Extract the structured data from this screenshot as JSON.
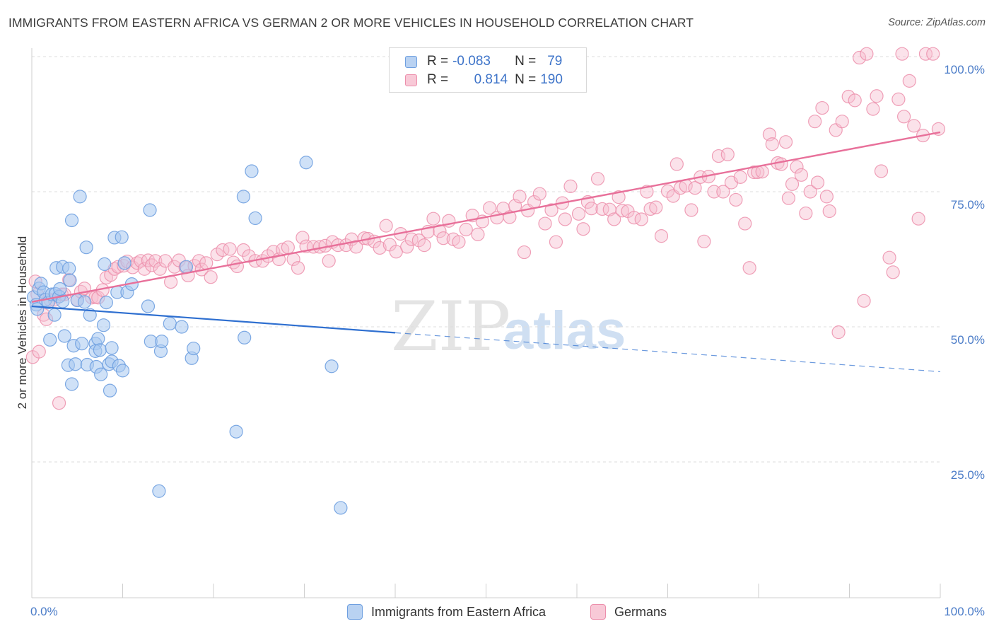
{
  "title": "IMMIGRANTS FROM EASTERN AFRICA VS GERMAN 2 OR MORE VEHICLES IN HOUSEHOLD CORRELATION CHART",
  "source": "Source: ZipAtlas.com",
  "watermark": {
    "zip": "ZIP",
    "atlas": "atlas"
  },
  "legend": {
    "rows": [
      {
        "r_label": "R =",
        "r_value": "-0.083",
        "n_label": "N =",
        "n_value": "79"
      },
      {
        "r_label": "R =",
        "r_value": "0.814",
        "n_label": "N =",
        "n_value": "190"
      }
    ]
  },
  "bottom_legend": [
    "Immigrants from Eastern Africa",
    "Germans"
  ],
  "colors": {
    "blue": "#6fa0e0",
    "blue_fill": "#a8c8f0",
    "blue_line": "#2e6fd0",
    "pink": "#ec8fac",
    "pink_fill": "#f6bfd0",
    "pink_line": "#e8709a",
    "tick_text": "#4b7cc8"
  },
  "chart_data": {
    "type": "scatter",
    "title": "IMMIGRANTS FROM EASTERN AFRICA VS GERMAN 2 OR MORE VEHICLES IN HOUSEHOLD CORRELATION CHART",
    "xlabel": "",
    "ylabel": "2 or more Vehicles in Household",
    "xlim": [
      0,
      100
    ],
    "ylim": [
      0,
      105
    ],
    "x_tick_labels": [
      "0.0%",
      "100.0%"
    ],
    "y_ticks": [
      25,
      50,
      75,
      100
    ],
    "y_tick_labels": [
      "25.0%",
      "50.0%",
      "75.0%",
      "100.0%"
    ],
    "grid": true,
    "legend_position": "top-center",
    "series": [
      {
        "name": "Immigrants from Eastern Africa",
        "r": -0.083,
        "n": 79,
        "trend": {
          "x": [
            0,
            40,
            100
          ],
          "y": [
            53.8,
            48.9,
            41.7
          ],
          "solid_until": 40
        },
        "points": [
          [
            0.2,
            55.5
          ],
          [
            0.5,
            54.1
          ],
          [
            0.6,
            53.3
          ],
          [
            0.8,
            57.1
          ],
          [
            1.0,
            58.0
          ],
          [
            1.3,
            56.4
          ],
          [
            1.5,
            55.0
          ],
          [
            1.8,
            54.5
          ],
          [
            2.0,
            47.6
          ],
          [
            2.2,
            56.0
          ],
          [
            2.5,
            52.2
          ],
          [
            2.6,
            56.1
          ],
          [
            2.7,
            60.9
          ],
          [
            3.0,
            55.6
          ],
          [
            3.1,
            57.0
          ],
          [
            3.4,
            54.7
          ],
          [
            3.4,
            61.1
          ],
          [
            3.6,
            48.3
          ],
          [
            4.0,
            42.9
          ],
          [
            4.1,
            60.8
          ],
          [
            4.2,
            58.6
          ],
          [
            4.4,
            39.4
          ],
          [
            4.4,
            69.7
          ],
          [
            4.6,
            46.5
          ],
          [
            4.8,
            43.1
          ],
          [
            5.0,
            54.9
          ],
          [
            5.3,
            74.1
          ],
          [
            5.5,
            46.9
          ],
          [
            5.8,
            54.6
          ],
          [
            6.0,
            64.7
          ],
          [
            6.1,
            43.0
          ],
          [
            6.4,
            52.2
          ],
          [
            7.0,
            46.9
          ],
          [
            7.0,
            45.5
          ],
          [
            7.1,
            42.6
          ],
          [
            7.3,
            47.8
          ],
          [
            7.5,
            45.7
          ],
          [
            7.6,
            41.2
          ],
          [
            7.9,
            50.3
          ],
          [
            8.0,
            61.6
          ],
          [
            8.2,
            54.5
          ],
          [
            8.5,
            43.1
          ],
          [
            8.6,
            38.2
          ],
          [
            8.8,
            43.6
          ],
          [
            8.8,
            46.1
          ],
          [
            9.1,
            66.5
          ],
          [
            9.4,
            56.4
          ],
          [
            9.6,
            42.8
          ],
          [
            9.9,
            66.6
          ],
          [
            10.0,
            41.9
          ],
          [
            10.2,
            61.8
          ],
          [
            10.5,
            56.4
          ],
          [
            11.0,
            57.9
          ],
          [
            12.8,
            53.8
          ],
          [
            13.0,
            71.6
          ],
          [
            13.1,
            47.3
          ],
          [
            14.0,
            19.6
          ],
          [
            14.2,
            45.5
          ],
          [
            14.3,
            47.3
          ],
          [
            15.2,
            50.6
          ],
          [
            16.5,
            50.0
          ],
          [
            17.0,
            61.1
          ],
          [
            17.6,
            44.2
          ],
          [
            17.8,
            46.0
          ],
          [
            22.5,
            30.6
          ],
          [
            23.3,
            74.1
          ],
          [
            23.4,
            48.0
          ],
          [
            24.2,
            78.8
          ],
          [
            24.6,
            70.1
          ],
          [
            30.2,
            80.4
          ],
          [
            33.0,
            42.7
          ],
          [
            34.0,
            16.5
          ]
        ]
      },
      {
        "name": "Germans",
        "r": 0.814,
        "n": 190,
        "trend": {
          "x": [
            0,
            100
          ],
          "y": [
            54.6,
            86.0
          ]
        },
        "points": [
          [
            0.1,
            44.4
          ],
          [
            0.4,
            58.4
          ],
          [
            0.6,
            56.0
          ],
          [
            0.8,
            45.4
          ],
          [
            1.3,
            52.2
          ],
          [
            1.6,
            51.4
          ],
          [
            2.0,
            55.0
          ],
          [
            2.5,
            55.0
          ],
          [
            3.0,
            35.9
          ],
          [
            3.3,
            56.0
          ],
          [
            3.6,
            56.0
          ],
          [
            4.1,
            58.7
          ],
          [
            5.0,
            55.0
          ],
          [
            5.4,
            56.5
          ],
          [
            5.8,
            57.1
          ],
          [
            6.6,
            55.4
          ],
          [
            7.0,
            55.5
          ],
          [
            7.3,
            55.4
          ],
          [
            7.8,
            56.8
          ],
          [
            8.2,
            59.1
          ],
          [
            8.7,
            59.6
          ],
          [
            9.1,
            60.7
          ],
          [
            9.5,
            61.1
          ],
          [
            10.1,
            61.3
          ],
          [
            10.5,
            62.1
          ],
          [
            11.1,
            61.0
          ],
          [
            11.6,
            61.8
          ],
          [
            12.0,
            62.2
          ],
          [
            12.4,
            60.7
          ],
          [
            12.8,
            62.3
          ],
          [
            13.2,
            61.4
          ],
          [
            13.6,
            62.2
          ],
          [
            14.1,
            60.7
          ],
          [
            14.7,
            62.2
          ],
          [
            15.3,
            58.3
          ],
          [
            15.7,
            61.1
          ],
          [
            16.2,
            62.3
          ],
          [
            16.9,
            61.0
          ],
          [
            17.2,
            59.5
          ],
          [
            17.9,
            61.3
          ],
          [
            18.4,
            62.2
          ],
          [
            18.7,
            60.6
          ],
          [
            19.2,
            61.8
          ],
          [
            19.7,
            59.2
          ],
          [
            20.4,
            63.4
          ],
          [
            21.0,
            64.2
          ],
          [
            21.8,
            64.4
          ],
          [
            22.2,
            61.9
          ],
          [
            22.6,
            61.2
          ],
          [
            23.3,
            64.2
          ],
          [
            23.9,
            63.1
          ],
          [
            24.6,
            62.2
          ],
          [
            25.4,
            62.2
          ],
          [
            26.0,
            63.1
          ],
          [
            26.6,
            63.9
          ],
          [
            27.2,
            62.5
          ],
          [
            27.6,
            64.3
          ],
          [
            28.2,
            64.7
          ],
          [
            28.8,
            62.5
          ],
          [
            29.3,
            60.9
          ],
          [
            29.8,
            66.5
          ],
          [
            30.2,
            64.9
          ],
          [
            31.0,
            64.8
          ],
          [
            31.7,
            64.8
          ],
          [
            32.3,
            65.0
          ],
          [
            32.7,
            62.2
          ],
          [
            33.1,
            65.7
          ],
          [
            33.7,
            65.1
          ],
          [
            34.6,
            65.1
          ],
          [
            35.2,
            66.2
          ],
          [
            35.7,
            64.8
          ],
          [
            36.6,
            66.4
          ],
          [
            37.0,
            66.3
          ],
          [
            37.7,
            65.8
          ],
          [
            38.3,
            64.6
          ],
          [
            39.0,
            68.7
          ],
          [
            39.4,
            65.2
          ],
          [
            40.1,
            63.9
          ],
          [
            40.6,
            67.2
          ],
          [
            41.3,
            64.8
          ],
          [
            41.8,
            66.2
          ],
          [
            42.6,
            66.0
          ],
          [
            43.2,
            65.1
          ],
          [
            43.6,
            67.6
          ],
          [
            44.2,
            70.0
          ],
          [
            44.9,
            67.7
          ],
          [
            45.3,
            66.4
          ],
          [
            45.9,
            69.6
          ],
          [
            46.4,
            66.2
          ],
          [
            47.0,
            65.7
          ],
          [
            47.8,
            68.0
          ],
          [
            48.5,
            70.6
          ],
          [
            49.1,
            67.1
          ],
          [
            49.6,
            69.5
          ],
          [
            50.4,
            72.0
          ],
          [
            51.2,
            70.2
          ],
          [
            51.9,
            71.9
          ],
          [
            52.6,
            70.3
          ],
          [
            53.2,
            72.4
          ],
          [
            53.7,
            74.1
          ],
          [
            54.2,
            63.8
          ],
          [
            54.6,
            71.5
          ],
          [
            55.3,
            73.1
          ],
          [
            55.9,
            74.6
          ],
          [
            56.5,
            69.1
          ],
          [
            57.2,
            71.6
          ],
          [
            57.7,
            65.7
          ],
          [
            58.4,
            72.9
          ],
          [
            58.7,
            69.9
          ],
          [
            59.3,
            76.0
          ],
          [
            60.2,
            70.9
          ],
          [
            60.7,
            68.1
          ],
          [
            61.2,
            73.1
          ],
          [
            61.6,
            71.9
          ],
          [
            62.3,
            77.4
          ],
          [
            62.8,
            71.8
          ],
          [
            63.6,
            71.7
          ],
          [
            64.1,
            69.9
          ],
          [
            64.6,
            74.0
          ],
          [
            65.0,
            71.5
          ],
          [
            65.6,
            71.4
          ],
          [
            66.3,
            70.2
          ],
          [
            67.1,
            69.9
          ],
          [
            67.7,
            75.0
          ],
          [
            68.1,
            71.8
          ],
          [
            68.7,
            72.1
          ],
          [
            69.3,
            66.8
          ],
          [
            70.0,
            75.1
          ],
          [
            70.6,
            74.2
          ],
          [
            71.0,
            80.1
          ],
          [
            71.4,
            75.7
          ],
          [
            72.0,
            76.1
          ],
          [
            72.6,
            71.6
          ],
          [
            73.0,
            75.7
          ],
          [
            73.6,
            77.7
          ],
          [
            74.0,
            65.8
          ],
          [
            74.5,
            77.8
          ],
          [
            75.1,
            75.0
          ],
          [
            75.6,
            81.6
          ],
          [
            76.1,
            75.0
          ],
          [
            76.6,
            81.9
          ],
          [
            77.0,
            76.7
          ],
          [
            77.5,
            73.5
          ],
          [
            78.0,
            77.7
          ],
          [
            78.5,
            69.1
          ],
          [
            79.0,
            60.9
          ],
          [
            79.5,
            78.6
          ],
          [
            79.9,
            78.6
          ],
          [
            80.4,
            78.7
          ],
          [
            81.2,
            85.6
          ],
          [
            81.5,
            83.8
          ],
          [
            82.1,
            80.3
          ],
          [
            82.5,
            80.1
          ],
          [
            83.0,
            84.2
          ],
          [
            83.3,
            73.8
          ],
          [
            83.7,
            76.4
          ],
          [
            84.2,
            79.6
          ],
          [
            84.7,
            78.1
          ],
          [
            85.2,
            71.0
          ],
          [
            85.7,
            75.0
          ],
          [
            86.2,
            88.0
          ],
          [
            86.5,
            76.7
          ],
          [
            87.0,
            90.5
          ],
          [
            87.5,
            74.1
          ],
          [
            87.8,
            71.4
          ],
          [
            88.5,
            86.4
          ],
          [
            88.8,
            49.0
          ],
          [
            89.2,
            88.0
          ],
          [
            89.9,
            92.6
          ],
          [
            90.6,
            91.9
          ],
          [
            91.1,
            99.8
          ],
          [
            91.6,
            54.8
          ],
          [
            91.9,
            100.5
          ],
          [
            92.6,
            90.3
          ],
          [
            93.0,
            92.7
          ],
          [
            93.5,
            78.8
          ],
          [
            94.4,
            62.8
          ],
          [
            94.8,
            60.1
          ],
          [
            95.4,
            92.1
          ],
          [
            95.8,
            100.5
          ],
          [
            96.0,
            88.9
          ],
          [
            96.6,
            95.5
          ],
          [
            97.1,
            87.2
          ],
          [
            97.6,
            70.0
          ],
          [
            98.1,
            85.4
          ],
          [
            98.4,
            100.5
          ],
          [
            99.2,
            100.5
          ],
          [
            99.8,
            86.6
          ]
        ]
      }
    ]
  }
}
